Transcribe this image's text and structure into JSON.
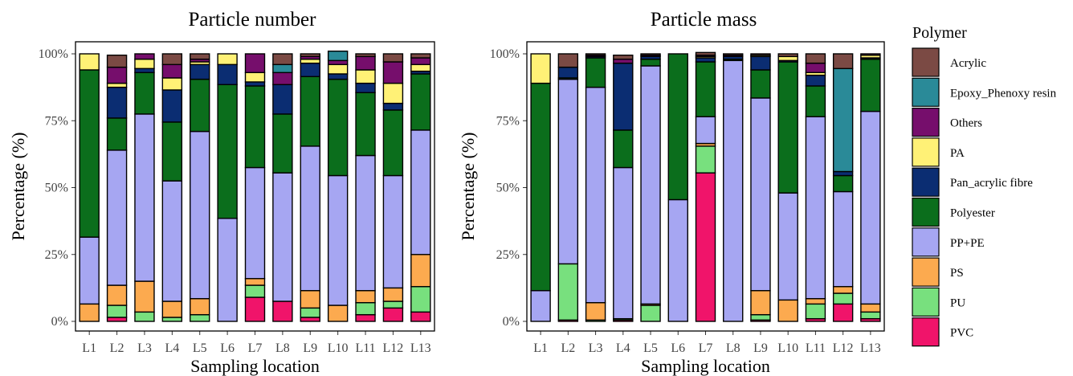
{
  "legend": {
    "title": "Polymer",
    "items": [
      {
        "name": "Acrylic",
        "color": "#7b4a44"
      },
      {
        "name": "Epoxy_Phenoxy resin",
        "color": "#2a8a98"
      },
      {
        "name": "Others",
        "color": "#760e6c"
      },
      {
        "name": "PA",
        "color": "#fff176"
      },
      {
        "name": "Pan_acrylic fibre",
        "color": "#0b2d72"
      },
      {
        "name": "Polyester",
        "color": "#0b6e1c"
      },
      {
        "name": "PP+PE",
        "color": "#a6a6f2"
      },
      {
        "name": "PS",
        "color": "#fcaa4f"
      },
      {
        "name": "PU",
        "color": "#78e07e"
      },
      {
        "name": "PVC",
        "color": "#f0146a"
      }
    ]
  },
  "chart_data": [
    {
      "type": "bar",
      "stacked": true,
      "title": "Particle number",
      "xlabel": "Sampling location",
      "ylabel": "Percentage (%)",
      "ylim": [
        0,
        100
      ],
      "yticks": [
        "0%",
        "25%",
        "50%",
        "75%",
        "100%"
      ],
      "categories": [
        "L1",
        "L2",
        "L3",
        "L4",
        "L5",
        "L6",
        "L7",
        "L8",
        "L9",
        "L10",
        "L11",
        "L12",
        "L13"
      ],
      "series": [
        {
          "name": "PVC",
          "values": [
            0,
            1.5,
            0,
            0,
            0,
            0,
            9,
            7.5,
            1.5,
            0,
            2.5,
            5,
            3.5
          ]
        },
        {
          "name": "PU",
          "values": [
            0,
            4.5,
            3.5,
            1.5,
            2.5,
            0,
            4.5,
            0,
            3.5,
            0,
            4.5,
            2.5,
            9.5
          ]
        },
        {
          "name": "PS",
          "values": [
            6.5,
            7.5,
            11.5,
            6,
            6,
            0,
            2.5,
            0,
            6.5,
            6,
            4.5,
            5,
            12
          ]
        },
        {
          "name": "PP+PE",
          "values": [
            25,
            50.5,
            62.5,
            45,
            62.5,
            38.5,
            41.5,
            48,
            54,
            48.5,
            50.5,
            42,
            46.5
          ]
        },
        {
          "name": "Polyester",
          "values": [
            62.5,
            12,
            15.5,
            22,
            19.5,
            50,
            30.5,
            22,
            26,
            36,
            23.5,
            24.5,
            21
          ]
        },
        {
          "name": "Pan_acrylic fibre",
          "values": [
            0,
            11.5,
            1.5,
            12,
            5.5,
            7.5,
            1.5,
            11,
            5,
            2,
            3.5,
            2.5,
            1
          ]
        },
        {
          "name": "PA",
          "values": [
            6,
            1.5,
            3.5,
            4.5,
            1,
            4,
            3.5,
            0,
            1.5,
            3.5,
            5,
            7.5,
            2.5
          ]
        },
        {
          "name": "Others",
          "values": [
            0,
            6,
            2,
            5,
            1,
            0,
            7,
            4.5,
            1,
            1.5,
            5,
            8,
            2.5
          ]
        },
        {
          "name": "Epoxy_Phenoxy resin",
          "values": [
            0,
            0,
            0,
            0,
            0,
            0,
            0,
            3,
            0,
            3.5,
            0,
            0,
            0
          ]
        },
        {
          "name": "Acrylic",
          "values": [
            0,
            4.5,
            0,
            4,
            2,
            0,
            0,
            4,
            1,
            0,
            1,
            3,
            1.5
          ]
        }
      ]
    },
    {
      "type": "bar",
      "stacked": true,
      "title": "Particle mass",
      "xlabel": "Sampling location",
      "ylabel": "Percentage (%)",
      "ylim": [
        0,
        100
      ],
      "yticks": [
        "0%",
        "25%",
        "50%",
        "75%",
        "100%"
      ],
      "categories": [
        "L1",
        "L2",
        "L3",
        "L4",
        "L5",
        "L6",
        "L7",
        "L8",
        "L9",
        "L10",
        "L11",
        "L12",
        "L13"
      ],
      "series": [
        {
          "name": "PVC",
          "values": [
            0,
            0.5,
            0,
            0.5,
            0,
            0,
            55.5,
            0,
            0.5,
            0,
            1,
            6.5,
            1
          ]
        },
        {
          "name": "PU",
          "values": [
            0,
            21,
            0.5,
            0.5,
            6,
            0,
            10,
            0,
            2,
            0,
            5.5,
            4,
            2.5
          ]
        },
        {
          "name": "PS",
          "values": [
            0,
            0,
            6.5,
            0,
            0.5,
            0,
            1,
            0,
            9,
            8,
            2,
            2.5,
            3
          ]
        },
        {
          "name": "PP+PE",
          "values": [
            11.5,
            69,
            80.5,
            56.5,
            89,
            45.5,
            10,
            97.5,
            72,
            40,
            68,
            35.5,
            72
          ]
        },
        {
          "name": "Polyester",
          "values": [
            77.5,
            0.5,
            11,
            14,
            2.5,
            54.5,
            20.5,
            0.5,
            10.5,
            49,
            11.5,
            6,
            19.5
          ]
        },
        {
          "name": "Pan_acrylic fibre",
          "values": [
            0,
            4,
            0.5,
            25,
            1,
            0,
            1.5,
            1,
            5,
            0.5,
            4,
            1.5,
            0.5
          ]
        },
        {
          "name": "PA",
          "values": [
            11,
            0,
            0,
            0,
            0,
            0,
            0.5,
            0,
            0.5,
            1.5,
            1,
            0,
            1
          ]
        },
        {
          "name": "Others",
          "values": [
            0,
            0,
            0.5,
            1.5,
            0.5,
            0,
            0.5,
            0.5,
            0,
            0,
            3.5,
            0,
            0.5
          ]
        },
        {
          "name": "Epoxy_Phenoxy resin",
          "values": [
            0,
            0,
            0,
            0,
            0,
            0,
            0,
            0,
            0,
            0,
            0,
            38.5,
            0
          ]
        },
        {
          "name": "Acrylic",
          "values": [
            0,
            5,
            0.5,
            1.5,
            0.5,
            0,
            1,
            0.5,
            0.5,
            1,
            3.5,
            5.5,
            0
          ]
        }
      ]
    }
  ]
}
